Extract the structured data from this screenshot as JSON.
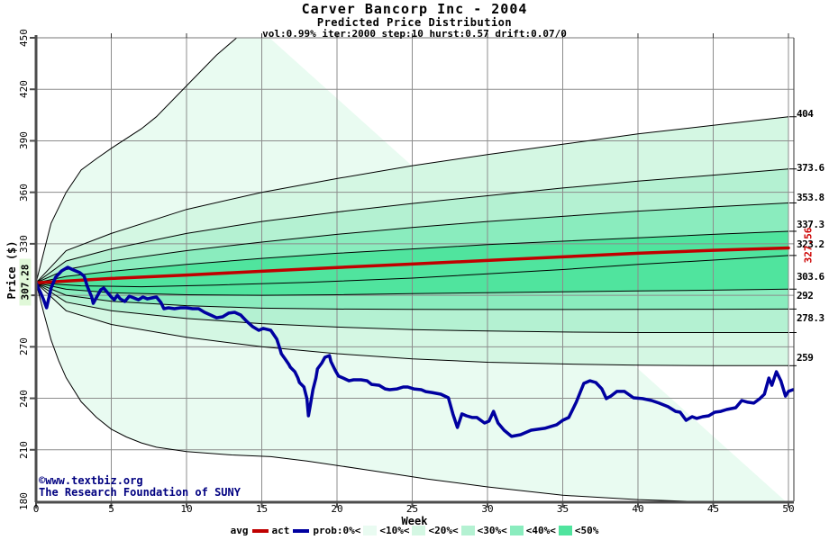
{
  "header": {
    "title": "Carver Bancorp Inc - 2004",
    "subtitle": "Predicted Price Distribution",
    "params": "vol:0.99% iter:2000 step:10 hurst:0.57 drift:0.07/0"
  },
  "watermark": {
    "line1": "©www.textbiz.org",
    "line2": "The Research Foundation of SUNY"
  },
  "axes": {
    "y_label": "Price ($)",
    "x_label": "Week",
    "start_price_label": "307.28",
    "avg_end_label": "327.56"
  },
  "legend": {
    "avg": "avg",
    "act": "act",
    "prob": [
      "prob:0%<",
      "<10%<",
      "<20%<",
      "<30%<",
      "<40%<",
      "<50%"
    ]
  },
  "colors": {
    "actual": "#0000a0",
    "average": "#c00000",
    "avg_label": "#cc0000",
    "watermark": "#000080",
    "grid": "#8c8c8c",
    "axis": "#4d4d4d",
    "border_top": "#777777",
    "border_right": "#333333",
    "line_black": "#000000",
    "highlight_bg": "#e0f8d8",
    "bands": [
      "#e9fbf1",
      "#d4f7e3",
      "#b4f1d2",
      "#8aecbe",
      "#50e49e"
    ]
  },
  "chart_data": {
    "type": "area",
    "subtype": "fan-chart-probability-distribution",
    "title": "Carver Bancorp Inc - 2004",
    "subtitle": "Predicted Price Distribution",
    "params_line": "vol:0.99% iter:2000 step:10 hurst:0.57 drift:0.07/0",
    "xlabel": "Week",
    "ylabel": "Price ($)",
    "xlim": [
      0,
      50.3
    ],
    "ylim": [
      180,
      450
    ],
    "x_ticks": [
      0,
      5,
      10,
      15,
      20,
      25,
      30,
      35,
      40,
      45,
      50
    ],
    "y_ticks": [
      180,
      210,
      240,
      270,
      300,
      330,
      360,
      390,
      420,
      450
    ],
    "grid": true,
    "start_price": 307.28,
    "average_end_price": 327.56,
    "right_edge_labels": [
      {
        "text": "404",
        "value": 404
      },
      {
        "text": "373.6",
        "value": 373.6
      },
      {
        "text": "353.8",
        "value": 353.8
      },
      {
        "text": "337.3",
        "value": 337.3
      },
      {
        "text": "323.2",
        "value": 323.2
      },
      {
        "text": "303.6",
        "value": 303.6
      },
      {
        "text": "292",
        "value": 292
      },
      {
        "text": "278.3",
        "value": 278.3
      },
      {
        "text": "259",
        "value": 259
      }
    ],
    "percentiles": {
      "env_u": [
        [
          0,
          307.28
        ],
        [
          1,
          342
        ],
        [
          2,
          360
        ],
        [
          3,
          373
        ],
        [
          4,
          379.5
        ],
        [
          5,
          385.6
        ],
        [
          7,
          397
        ],
        [
          8,
          404
        ],
        [
          10,
          422
        ],
        [
          12,
          440
        ],
        [
          13.6,
          452
        ],
        [
          14.5,
          458
        ]
      ],
      "u10": [
        [
          0,
          307.28
        ],
        [
          2,
          326
        ],
        [
          5,
          336
        ],
        [
          10,
          350
        ],
        [
          15,
          360
        ],
        [
          20,
          368
        ],
        [
          25,
          375.5
        ],
        [
          30,
          382
        ],
        [
          35,
          388
        ],
        [
          40,
          394
        ],
        [
          45,
          399
        ],
        [
          50,
          404
        ]
      ],
      "u20": [
        [
          0,
          307.28
        ],
        [
          2,
          320
        ],
        [
          5,
          327
        ],
        [
          10,
          336
        ],
        [
          15,
          343
        ],
        [
          20,
          348.5
        ],
        [
          25,
          353.5
        ],
        [
          30,
          358
        ],
        [
          35,
          362.5
        ],
        [
          40,
          366.5
        ],
        [
          45,
          370
        ],
        [
          50,
          373.6
        ]
      ],
      "u30": [
        [
          0,
          307.28
        ],
        [
          2,
          315
        ],
        [
          5,
          320
        ],
        [
          10,
          326
        ],
        [
          15,
          331
        ],
        [
          20,
          335.5
        ],
        [
          25,
          339.5
        ],
        [
          30,
          343
        ],
        [
          35,
          346
        ],
        [
          40,
          349
        ],
        [
          45,
          351.5
        ],
        [
          50,
          353.8
        ]
      ],
      "u40": [
        [
          0,
          307.28
        ],
        [
          2,
          311
        ],
        [
          5,
          314
        ],
        [
          10,
          318
        ],
        [
          15,
          321.5
        ],
        [
          20,
          324.5
        ],
        [
          25,
          327
        ],
        [
          30,
          329.5
        ],
        [
          35,
          331.5
        ],
        [
          40,
          333.5
        ],
        [
          45,
          335.5
        ],
        [
          50,
          337.3
        ]
      ],
      "median": [
        [
          0,
          307.28
        ],
        [
          3,
          305.5
        ],
        [
          7,
          305
        ],
        [
          12,
          306
        ],
        [
          18,
          307.5
        ],
        [
          25,
          310
        ],
        [
          30,
          312.5
        ],
        [
          35,
          315
        ],
        [
          40,
          318
        ],
        [
          45,
          320.5
        ],
        [
          50,
          323.2
        ]
      ],
      "l40": [
        [
          0,
          307.28
        ],
        [
          2,
          303.5
        ],
        [
          5,
          301.5
        ],
        [
          10,
          300.3
        ],
        [
          15,
          300
        ],
        [
          20,
          300.3
        ],
        [
          25,
          301
        ],
        [
          30,
          301.5
        ],
        [
          35,
          302
        ],
        [
          40,
          302.5
        ],
        [
          45,
          303
        ],
        [
          50,
          303.6
        ]
      ],
      "l30": [
        [
          0,
          307.28
        ],
        [
          2,
          300
        ],
        [
          5,
          296.5
        ],
        [
          10,
          294
        ],
        [
          15,
          292.5
        ],
        [
          20,
          292
        ],
        [
          25,
          291.8
        ],
        [
          30,
          291.7
        ],
        [
          35,
          291.7
        ],
        [
          40,
          291.8
        ],
        [
          45,
          291.9
        ],
        [
          50,
          292
        ]
      ],
      "l20": [
        [
          0,
          307.28
        ],
        [
          2,
          296
        ],
        [
          5,
          291
        ],
        [
          10,
          286.5
        ],
        [
          15,
          283.5
        ],
        [
          20,
          281.5
        ],
        [
          25,
          280
        ],
        [
          30,
          279.2
        ],
        [
          35,
          278.6
        ],
        [
          40,
          278.3
        ],
        [
          45,
          278.3
        ],
        [
          50,
          278.3
        ]
      ],
      "l10": [
        [
          0,
          307.28
        ],
        [
          2,
          291
        ],
        [
          5,
          283
        ],
        [
          10,
          275.5
        ],
        [
          15,
          270
        ],
        [
          20,
          266
        ],
        [
          25,
          263
        ],
        [
          30,
          261
        ],
        [
          35,
          260
        ],
        [
          40,
          259.3
        ],
        [
          45,
          259
        ],
        [
          50,
          259
        ]
      ],
      "env_l": [
        [
          0,
          307.28
        ],
        [
          0.5,
          290
        ],
        [
          1,
          274
        ],
        [
          1.5,
          262
        ],
        [
          2,
          252
        ],
        [
          3,
          238
        ],
        [
          4,
          229
        ],
        [
          5,
          222
        ],
        [
          6,
          217.5
        ],
        [
          7,
          214
        ],
        [
          8,
          211.5
        ],
        [
          10,
          209
        ],
        [
          13,
          207
        ],
        [
          15.6,
          206
        ],
        [
          18,
          203.5
        ],
        [
          22,
          198.3
        ],
        [
          26,
          193
        ],
        [
          30,
          188.4
        ],
        [
          35,
          183.5
        ],
        [
          40,
          181
        ],
        [
          45,
          179.5
        ],
        [
          50,
          178.5
        ]
      ]
    },
    "series": {
      "average": [
        [
          0,
          307.28
        ],
        [
          5,
          309.8
        ],
        [
          10,
          311.8
        ],
        [
          15,
          314
        ],
        [
          20,
          316.2
        ],
        [
          25,
          318.2
        ],
        [
          30,
          320.3
        ],
        [
          35,
          322.4
        ],
        [
          40,
          324.5
        ],
        [
          45,
          326.2
        ],
        [
          50,
          327.56
        ]
      ],
      "actual": [
        [
          0,
          307.3
        ],
        [
          0.3,
          301.6
        ],
        [
          0.5,
          297.4
        ],
        [
          0.7,
          292.7
        ],
        [
          1,
          304.2
        ],
        [
          1.3,
          310.5
        ],
        [
          1.7,
          314.2
        ],
        [
          2.1,
          316.3
        ],
        [
          2.5,
          314.7
        ],
        [
          2.9,
          313.2
        ],
        [
          3.2,
          311.1
        ],
        [
          3.4,
          305.3
        ],
        [
          3.7,
          299
        ],
        [
          3.8,
          295.3
        ],
        [
          4,
          298.5
        ],
        [
          4.3,
          303.2
        ],
        [
          4.5,
          304.2
        ],
        [
          4.7,
          302.1
        ],
        [
          5,
          299
        ],
        [
          5.2,
          297.4
        ],
        [
          5.4,
          300
        ],
        [
          5.6,
          297.9
        ],
        [
          5.9,
          296.4
        ],
        [
          6.2,
          299.5
        ],
        [
          6.5,
          298.5
        ],
        [
          6.8,
          297.4
        ],
        [
          7.1,
          299
        ],
        [
          7.4,
          297.9
        ],
        [
          7.7,
          298.5
        ],
        [
          8,
          299
        ],
        [
          8.3,
          295.8
        ],
        [
          8.5,
          292.2
        ],
        [
          8.8,
          292.7
        ],
        [
          9.2,
          292.2
        ],
        [
          9.6,
          292.7
        ],
        [
          10,
          292.7
        ],
        [
          10.4,
          292.2
        ],
        [
          10.8,
          292.2
        ],
        [
          11.2,
          290.1
        ],
        [
          11.6,
          288.5
        ],
        [
          12,
          286.9
        ],
        [
          12.4,
          287.5
        ],
        [
          12.8,
          289.6
        ],
        [
          13.2,
          290.1
        ],
        [
          13.6,
          288.5
        ],
        [
          14,
          284.8
        ],
        [
          14.4,
          281.7
        ],
        [
          14.8,
          279.6
        ],
        [
          15.1,
          280.7
        ],
        [
          15.6,
          279.6
        ],
        [
          16,
          274.4
        ],
        [
          16.2,
          269.1
        ],
        [
          16.3,
          266
        ],
        [
          16.6,
          262.3
        ],
        [
          16.8,
          259.7
        ],
        [
          16.9,
          258.1
        ],
        [
          17.2,
          255.5
        ],
        [
          17.4,
          251.8
        ],
        [
          17.5,
          249.2
        ],
        [
          17.8,
          246.6
        ],
        [
          18,
          239.8
        ],
        [
          18.1,
          229.8
        ],
        [
          18.2,
          234.5
        ],
        [
          18.4,
          245
        ],
        [
          18.6,
          251.8
        ],
        [
          18.7,
          257.1
        ],
        [
          19,
          260.7
        ],
        [
          19.2,
          263.9
        ],
        [
          19.5,
          264.9
        ],
        [
          19.6,
          261.3
        ],
        [
          19.9,
          256
        ],
        [
          20.1,
          252.9
        ],
        [
          20.4,
          251.8
        ],
        [
          20.8,
          250.2
        ],
        [
          21.1,
          250.8
        ],
        [
          21.6,
          250.8
        ],
        [
          22,
          250.2
        ],
        [
          22.3,
          248.1
        ],
        [
          22.8,
          247.6
        ],
        [
          23.2,
          245.5
        ],
        [
          23.5,
          245
        ],
        [
          24,
          245.5
        ],
        [
          24.4,
          246.6
        ],
        [
          24.7,
          246.6
        ],
        [
          25.1,
          245.5
        ],
        [
          25.6,
          245
        ],
        [
          25.9,
          243.9
        ],
        [
          26.3,
          243.4
        ],
        [
          26.9,
          242.4
        ],
        [
          27.4,
          240.3
        ],
        [
          27.7,
          230.9
        ],
        [
          28,
          223
        ],
        [
          28.3,
          230.9
        ],
        [
          28.6,
          229.8
        ],
        [
          29,
          228.8
        ],
        [
          29.3,
          228.8
        ],
        [
          29.8,
          225.6
        ],
        [
          30.1,
          226.7
        ],
        [
          30.4,
          232.4
        ],
        [
          30.7,
          225.6
        ],
        [
          31.1,
          221.4
        ],
        [
          31.6,
          217.8
        ],
        [
          32.2,
          218.8
        ],
        [
          32.9,
          221.4
        ],
        [
          33.8,
          222.5
        ],
        [
          34.6,
          224.6
        ],
        [
          35,
          227.2
        ],
        [
          35.4,
          228.8
        ],
        [
          35.9,
          237.7
        ],
        [
          36.4,
          248.7
        ],
        [
          36.8,
          250.2
        ],
        [
          37.2,
          249.2
        ],
        [
          37.6,
          245.5
        ],
        [
          37.9,
          239.8
        ],
        [
          38.2,
          241.3
        ],
        [
          38.6,
          244
        ],
        [
          39.1,
          244
        ],
        [
          39.7,
          240.3
        ],
        [
          40.3,
          239.8
        ],
        [
          40.9,
          238.7
        ],
        [
          41.4,
          237.2
        ],
        [
          42,
          235.1
        ],
        [
          42.5,
          232.4
        ],
        [
          42.8,
          231.9
        ],
        [
          43.2,
          227.2
        ],
        [
          43.6,
          229.3
        ],
        [
          43.9,
          228.3
        ],
        [
          44.3,
          229.3
        ],
        [
          44.7,
          229.8
        ],
        [
          45.1,
          231.9
        ],
        [
          45.5,
          232.4
        ],
        [
          45.9,
          233.5
        ],
        [
          46.5,
          234.5
        ],
        [
          46.9,
          238.7
        ],
        [
          47.3,
          237.7
        ],
        [
          47.7,
          237.2
        ],
        [
          48.1,
          239.8
        ],
        [
          48.4,
          242.4
        ],
        [
          48.7,
          251.8
        ],
        [
          48.9,
          247.6
        ],
        [
          49.2,
          255.5
        ],
        [
          49.5,
          250.2
        ],
        [
          49.8,
          241.3
        ],
        [
          50,
          244
        ],
        [
          50.3,
          245
        ]
      ]
    },
    "legend_entries": [
      "avg",
      "act",
      "prob:0%<",
      "<10%<",
      "<20%<",
      "<30%<",
      "<40%<",
      "<50%"
    ],
    "legend_position": "bottom-center"
  }
}
